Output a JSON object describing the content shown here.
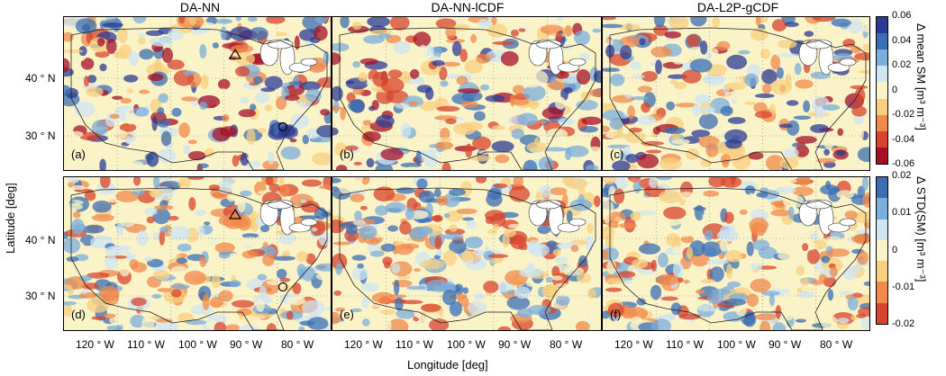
{
  "columns": [
    "DA-NN",
    "DA-NN-lCDF",
    "DA-L2P-gCDF"
  ],
  "panels": {
    "top": [
      "(a)",
      "(b)",
      "(c)"
    ],
    "bottom": [
      "(d)",
      "(e)",
      "(f)"
    ]
  },
  "axes": {
    "ylabel": "Latitude [deg]",
    "xlabel": "Longitude [deg]",
    "lat_ticks": [
      "40 ° N",
      "30 ° N"
    ],
    "lon_ticks": [
      "120 ° W",
      "110 ° W",
      "100 ° W",
      "90 ° W",
      "80 ° W"
    ]
  },
  "colorbars": {
    "top": {
      "label": "Δ mean SM [m³ m⁻³]",
      "ticks": [
        "0.06",
        "0.04",
        "0.02",
        "0",
        "-0.02",
        "-0.04",
        "-0.06"
      ],
      "colors": [
        "#2b3b94",
        "#3a6fb6",
        "#7aaedb",
        "#cfe6f2",
        "#fbf3c8",
        "#f8cf7f",
        "#f08a4b",
        "#d7432c",
        "#a50f26"
      ]
    },
    "bottom": {
      "label": "Δ STD(SM) [m³ m⁻³]",
      "ticks": [
        "0.02",
        "0.01",
        "0",
        "-0.01",
        "-0.02"
      ],
      "colors": [
        "#3a6fb6",
        "#7aaedb",
        "#cfe6f2",
        "#fbf3c8",
        "#f8cf7f",
        "#f08a4b",
        "#d7432c"
      ]
    }
  }
}
